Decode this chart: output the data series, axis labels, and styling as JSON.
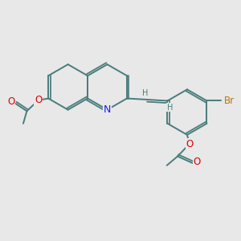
{
  "bg_color": "#e8e8e8",
  "bond_color": "#4a7c7c",
  "bond_width": 1.4,
  "atom_colors": {
    "N": "#1a1aff",
    "O": "#dd0000",
    "Br": "#bb7700",
    "H": "#4a7c7c",
    "C": "#4a7c7c"
  },
  "font_size": 8.5,
  "fig_size": [
    3.0,
    3.0
  ],
  "dpi": 100
}
